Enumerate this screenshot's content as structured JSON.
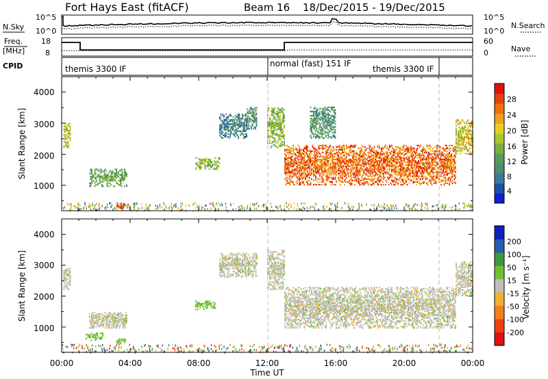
{
  "header": {
    "station": "Fort Hays East (fitACF)",
    "beam": "Beam 16",
    "dates": "18/Dec/2015 - 19/Dec/2015"
  },
  "noise_panel": {
    "left_label": "N.Sky",
    "right_label": "N.Search",
    "right_ticks": [
      "10^5",
      "10^0"
    ],
    "left_ticks": [
      "10^5",
      "10^0"
    ]
  },
  "freq_panel": {
    "left_label_1": "Freq.",
    "left_label_2": "[MHz]",
    "left_ticks": [
      "18",
      "8"
    ],
    "right_label": "Nave",
    "right_ticks": [
      "60",
      "0"
    ]
  },
  "cpid_panel": {
    "label": "CPID",
    "segments": [
      "themis 3300 IF",
      "normal (fast) 151 IF",
      "themis 3300 IF"
    ]
  },
  "power_panel": {
    "ylabel": "Slant Range [km]",
    "yticks": [
      "4000",
      "3000",
      "2000",
      "1000"
    ],
    "cbar_label": "Power [dB]",
    "cbar_ticks": [
      "28",
      "24",
      "20",
      "16",
      "12",
      "8",
      "4"
    ]
  },
  "velocity_panel": {
    "ylabel": "Slant Range [km]",
    "yticks": [
      "4000",
      "3000",
      "2000",
      "1000"
    ],
    "cbar_label": "Velocity [m s⁻¹]",
    "cbar_ticks": [
      "200",
      "100",
      "50",
      "15",
      "-15",
      "-50",
      "-100",
      "-200"
    ]
  },
  "xaxis": {
    "label": "Time UT",
    "ticks": [
      "00:00",
      "04:00",
      "08:00",
      "12:00",
      "16:00",
      "20:00",
      "00:00"
    ]
  },
  "chart_data": [
    {
      "type": "heatmap",
      "title": "Power",
      "ylabel": "Slant Range [km]",
      "ylim": [
        180,
        4500
      ],
      "xlim_hours": [
        0,
        24
      ],
      "zlim": [
        0,
        30
      ],
      "colors": [
        "#1020d0",
        "#204ea8",
        "#3a7aa0",
        "#4e8f6e",
        "#5a9a5a",
        "#7ab040",
        "#a8c830",
        "#e8d020",
        "#f0a020",
        "#f07010",
        "#e84010",
        "#e01010"
      ],
      "regions": [
        {
          "t": [
            0.1,
            0.5
          ],
          "r": [
            2200,
            3000
          ],
          "p": 16
        },
        {
          "t": [
            1.6,
            3.8
          ],
          "r": [
            950,
            1500
          ],
          "p": 12
        },
        {
          "t": [
            3.2,
            3.7
          ],
          "r": [
            200,
            400
          ],
          "p": 26
        },
        {
          "t": [
            7.8,
            9.2
          ],
          "r": [
            1500,
            1900
          ],
          "p": 14
        },
        {
          "t": [
            9.2,
            10.8
          ],
          "r": [
            2500,
            3300
          ],
          "p": 8
        },
        {
          "t": [
            10.8,
            11.4
          ],
          "r": [
            2800,
            3500
          ],
          "p": 10
        },
        {
          "t": [
            12.0,
            13.0
          ],
          "r": [
            2200,
            3500
          ],
          "p": 14
        },
        {
          "t": [
            13.0,
            23.0
          ],
          "r": [
            1000,
            2300
          ],
          "p": 24
        },
        {
          "t": [
            14.5,
            16.0
          ],
          "r": [
            2500,
            3500
          ],
          "p": 10
        },
        {
          "t": [
            23.0,
            24.0
          ],
          "r": [
            2000,
            3100
          ],
          "p": 18
        }
      ]
    },
    {
      "type": "heatmap",
      "title": "Velocity",
      "ylabel": "Slant Range [km]",
      "ylim": [
        180,
        4500
      ],
      "xlim_hours": [
        0,
        24
      ],
      "zlim": [
        -200,
        200
      ],
      "colors": [
        "#e01010",
        "#f04010",
        "#f08020",
        "#f0b030",
        "#c0c0b8",
        "#70c030",
        "#3a9a40",
        "#2a5ab0",
        "#1020c0"
      ],
      "regions": [
        {
          "t": [
            0.1,
            0.5
          ],
          "r": [
            2200,
            2900
          ],
          "v": 0
        },
        {
          "t": [
            1.6,
            3.8
          ],
          "r": [
            950,
            1450
          ],
          "v": 0
        },
        {
          "t": [
            1.4,
            2.4
          ],
          "r": [
            550,
            800
          ],
          "v": 30
        },
        {
          "t": [
            3.2,
            3.7
          ],
          "r": [
            400,
            650
          ],
          "v": 30
        },
        {
          "t": [
            7.8,
            9.0
          ],
          "r": [
            1550,
            1850
          ],
          "v": 30
        },
        {
          "t": [
            9.2,
            11.4
          ],
          "r": [
            2600,
            3400
          ],
          "v": 0
        },
        {
          "t": [
            12.0,
            13.0
          ],
          "r": [
            2200,
            3500
          ],
          "v": 0
        },
        {
          "t": [
            13.0,
            23.0
          ],
          "r": [
            950,
            2300
          ],
          "v": 0
        },
        {
          "t": [
            23.0,
            24.0
          ],
          "r": [
            2000,
            3100
          ],
          "v": 0
        }
      ]
    }
  ]
}
